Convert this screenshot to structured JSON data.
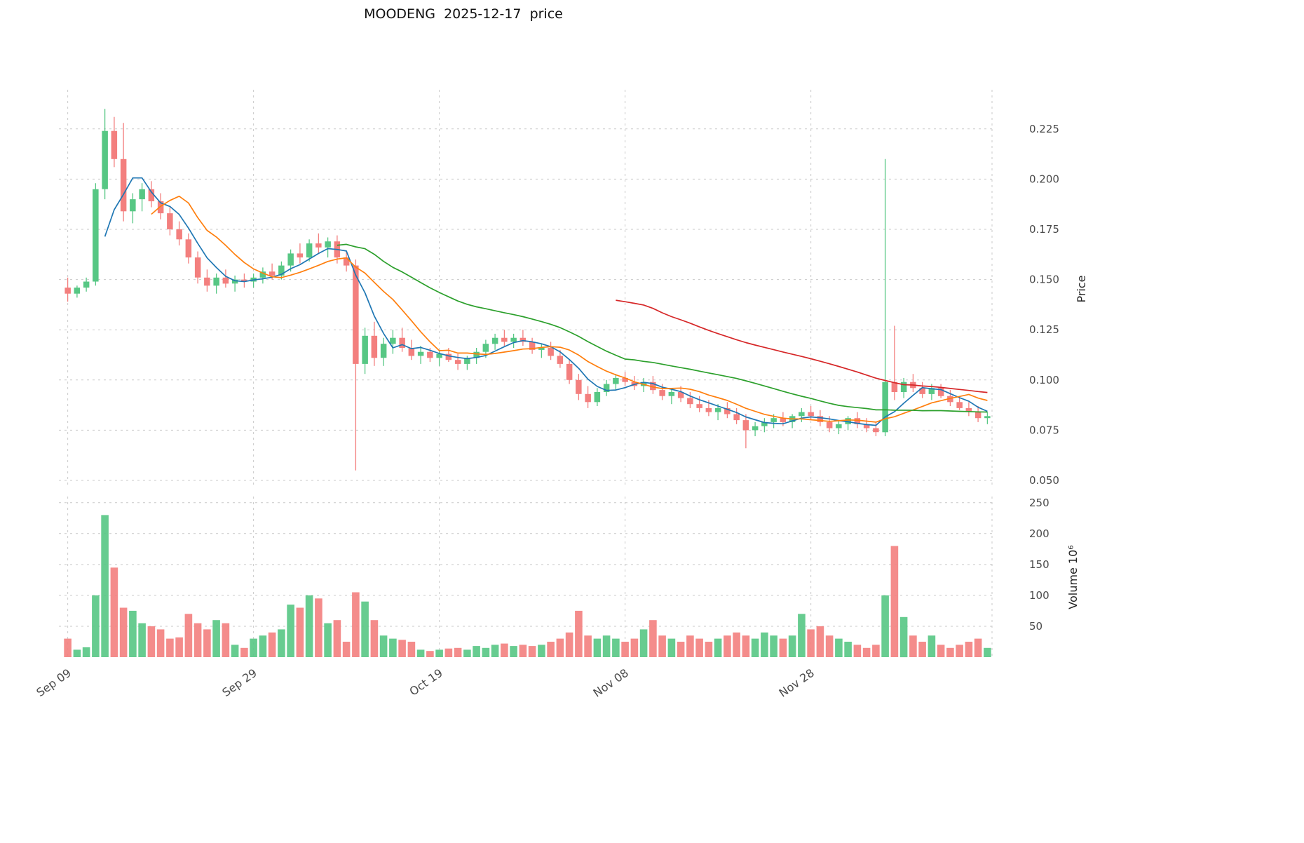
{
  "title": "MOODENG  2025-12-17  price",
  "axes": {
    "price_label": "Price",
    "volume_label": "Volume  10⁶",
    "price_tick_labels": [
      "0.050",
      "0.075",
      "0.100",
      "0.125",
      "0.150",
      "0.175",
      "0.200",
      "0.225"
    ],
    "volume_tick_labels": [
      "50",
      "100",
      "150",
      "200",
      "250"
    ]
  },
  "colors": {
    "up": "#57c784",
    "down": "#f37f7e",
    "ma_fast": "#1f77b4",
    "ma_mid": "#ff7f0e",
    "ma_slow": "#2ca02c",
    "ma_long": "#d62728",
    "grid": "#c9c9c9",
    "tick_text": "#4a4a4a",
    "background": "#ffffff"
  },
  "chart_data": {
    "type": "candlestick",
    "title": "MOODENG  2025-12-17  price",
    "price_axis_label": "Price",
    "volume_axis_label": "Volume  10⁶",
    "price_ticks": [
      0.05,
      0.075,
      0.1,
      0.125,
      0.15,
      0.175,
      0.2,
      0.225
    ],
    "volume_ticks": [
      50,
      100,
      150,
      200,
      250
    ],
    "price_ylim": [
      0.0465,
      0.2445
    ],
    "volume_ylim": [
      0,
      260
    ],
    "grid": "dashed",
    "x_ticks": [
      {
        "i": 0,
        "label": "Sep 09"
      },
      {
        "i": 20,
        "label": "Sep 29"
      },
      {
        "i": 40,
        "label": "Oct 19"
      },
      {
        "i": 60,
        "label": "Nov 08"
      },
      {
        "i": 80,
        "label": "Nov 28"
      }
    ],
    "moving_averages": [
      {
        "name": "ma5",
        "window": 5,
        "color": "#1f77b4"
      },
      {
        "name": "ma10",
        "window": 10,
        "color": "#ff7f0e"
      },
      {
        "name": "ma30",
        "window": 30,
        "color": "#2ca02c"
      },
      {
        "name": "ma60",
        "window": 60,
        "color": "#d62728"
      }
    ],
    "columns": [
      "date",
      "open",
      "high",
      "low",
      "close",
      "volume_millions"
    ],
    "candles": [
      [
        "2025-09-09",
        0.146,
        0.151,
        0.139,
        0.143,
        30
      ],
      [
        "2025-09-10",
        0.143,
        0.147,
        0.141,
        0.146,
        12
      ],
      [
        "2025-09-11",
        0.146,
        0.151,
        0.144,
        0.149,
        16
      ],
      [
        "2025-09-12",
        0.149,
        0.198,
        0.147,
        0.195,
        100
      ],
      [
        "2025-09-13",
        0.195,
        0.235,
        0.19,
        0.224,
        230
      ],
      [
        "2025-09-14",
        0.224,
        0.231,
        0.206,
        0.21,
        145
      ],
      [
        "2025-09-15",
        0.21,
        0.228,
        0.179,
        0.184,
        80
      ],
      [
        "2025-09-16",
        0.184,
        0.193,
        0.178,
        0.19,
        75
      ],
      [
        "2025-09-17",
        0.19,
        0.198,
        0.184,
        0.195,
        55
      ],
      [
        "2025-09-18",
        0.195,
        0.199,
        0.186,
        0.189,
        50
      ],
      [
        "2025-09-19",
        0.189,
        0.193,
        0.18,
        0.183,
        45
      ],
      [
        "2025-09-20",
        0.183,
        0.186,
        0.172,
        0.175,
        30
      ],
      [
        "2025-09-21",
        0.175,
        0.179,
        0.167,
        0.17,
        32
      ],
      [
        "2025-09-22",
        0.17,
        0.173,
        0.158,
        0.161,
        70
      ],
      [
        "2025-09-23",
        0.161,
        0.164,
        0.148,
        0.151,
        55
      ],
      [
        "2025-09-24",
        0.151,
        0.155,
        0.144,
        0.147,
        45
      ],
      [
        "2025-09-25",
        0.147,
        0.153,
        0.143,
        0.151,
        60
      ],
      [
        "2025-09-26",
        0.151,
        0.155,
        0.146,
        0.148,
        55
      ],
      [
        "2025-09-27",
        0.148,
        0.152,
        0.144,
        0.15,
        20
      ],
      [
        "2025-09-28",
        0.15,
        0.153,
        0.146,
        0.149,
        15
      ],
      [
        "2025-09-29",
        0.149,
        0.153,
        0.146,
        0.151,
        30
      ],
      [
        "2025-09-30",
        0.151,
        0.156,
        0.148,
        0.154,
        35
      ],
      [
        "2025-10-01",
        0.154,
        0.158,
        0.15,
        0.152,
        40
      ],
      [
        "2025-10-02",
        0.152,
        0.159,
        0.15,
        0.157,
        45
      ],
      [
        "2025-10-03",
        0.157,
        0.165,
        0.154,
        0.163,
        85
      ],
      [
        "2025-10-04",
        0.163,
        0.168,
        0.158,
        0.161,
        80
      ],
      [
        "2025-10-05",
        0.161,
        0.17,
        0.159,
        0.168,
        100
      ],
      [
        "2025-10-06",
        0.168,
        0.173,
        0.163,
        0.166,
        95
      ],
      [
        "2025-10-07",
        0.166,
        0.171,
        0.161,
        0.169,
        55
      ],
      [
        "2025-10-08",
        0.169,
        0.172,
        0.158,
        0.161,
        60
      ],
      [
        "2025-10-09",
        0.161,
        0.164,
        0.154,
        0.157,
        25
      ],
      [
        "2025-10-10",
        0.157,
        0.16,
        0.055,
        0.108,
        105
      ],
      [
        "2025-10-11",
        0.108,
        0.126,
        0.103,
        0.122,
        90
      ],
      [
        "2025-10-12",
        0.122,
        0.129,
        0.107,
        0.111,
        60
      ],
      [
        "2025-10-13",
        0.111,
        0.121,
        0.107,
        0.118,
        35
      ],
      [
        "2025-10-14",
        0.118,
        0.125,
        0.113,
        0.121,
        30
      ],
      [
        "2025-10-15",
        0.121,
        0.126,
        0.114,
        0.116,
        28
      ],
      [
        "2025-10-16",
        0.116,
        0.12,
        0.11,
        0.112,
        25
      ],
      [
        "2025-10-17",
        0.112,
        0.117,
        0.108,
        0.114,
        12
      ],
      [
        "2025-10-18",
        0.114,
        0.116,
        0.109,
        0.111,
        10
      ],
      [
        "2025-10-19",
        0.111,
        0.115,
        0.107,
        0.113,
        12
      ],
      [
        "2025-10-20",
        0.113,
        0.116,
        0.109,
        0.11,
        14
      ],
      [
        "2025-10-21",
        0.11,
        0.113,
        0.105,
        0.108,
        15
      ],
      [
        "2025-10-22",
        0.108,
        0.112,
        0.105,
        0.111,
        12
      ],
      [
        "2025-10-23",
        0.111,
        0.116,
        0.108,
        0.114,
        18
      ],
      [
        "2025-10-24",
        0.114,
        0.12,
        0.111,
        0.118,
        15
      ],
      [
        "2025-10-25",
        0.118,
        0.123,
        0.115,
        0.121,
        20
      ],
      [
        "2025-10-26",
        0.121,
        0.125,
        0.117,
        0.119,
        22
      ],
      [
        "2025-10-27",
        0.119,
        0.123,
        0.116,
        0.121,
        18
      ],
      [
        "2025-10-28",
        0.121,
        0.125,
        0.117,
        0.119,
        20
      ],
      [
        "2025-10-29",
        0.119,
        0.121,
        0.113,
        0.115,
        18
      ],
      [
        "2025-10-30",
        0.115,
        0.118,
        0.111,
        0.116,
        20
      ],
      [
        "2025-10-31",
        0.116,
        0.119,
        0.11,
        0.112,
        25
      ],
      [
        "2025-11-01",
        0.112,
        0.115,
        0.106,
        0.108,
        30
      ],
      [
        "2025-11-02",
        0.108,
        0.11,
        0.098,
        0.1,
        40
      ],
      [
        "2025-11-03",
        0.1,
        0.103,
        0.09,
        0.093,
        75
      ],
      [
        "2025-11-04",
        0.093,
        0.097,
        0.086,
        0.089,
        35
      ],
      [
        "2025-11-05",
        0.089,
        0.096,
        0.087,
        0.094,
        30
      ],
      [
        "2025-11-06",
        0.094,
        0.1,
        0.092,
        0.098,
        35
      ],
      [
        "2025-11-07",
        0.098,
        0.103,
        0.095,
        0.101,
        30
      ],
      [
        "2025-11-08",
        0.101,
        0.104,
        0.097,
        0.099,
        25
      ],
      [
        "2025-11-09",
        0.099,
        0.102,
        0.095,
        0.097,
        30
      ],
      [
        "2025-11-10",
        0.097,
        0.101,
        0.094,
        0.099,
        45
      ],
      [
        "2025-11-11",
        0.099,
        0.102,
        0.093,
        0.095,
        60
      ],
      [
        "2025-11-12",
        0.095,
        0.098,
        0.09,
        0.092,
        35
      ],
      [
        "2025-11-13",
        0.092,
        0.096,
        0.088,
        0.094,
        30
      ],
      [
        "2025-11-14",
        0.094,
        0.097,
        0.089,
        0.091,
        25
      ],
      [
        "2025-11-15",
        0.091,
        0.094,
        0.086,
        0.088,
        35
      ],
      [
        "2025-11-16",
        0.088,
        0.092,
        0.084,
        0.086,
        30
      ],
      [
        "2025-11-17",
        0.086,
        0.09,
        0.082,
        0.084,
        25
      ],
      [
        "2025-11-18",
        0.084,
        0.088,
        0.08,
        0.086,
        30
      ],
      [
        "2025-11-19",
        0.086,
        0.089,
        0.081,
        0.083,
        35
      ],
      [
        "2025-11-20",
        0.083,
        0.086,
        0.078,
        0.08,
        40
      ],
      [
        "2025-11-21",
        0.08,
        0.083,
        0.066,
        0.075,
        35
      ],
      [
        "2025-11-22",
        0.075,
        0.079,
        0.072,
        0.077,
        30
      ],
      [
        "2025-11-23",
        0.077,
        0.081,
        0.074,
        0.079,
        40
      ],
      [
        "2025-11-24",
        0.079,
        0.083,
        0.076,
        0.081,
        35
      ],
      [
        "2025-11-25",
        0.081,
        0.084,
        0.077,
        0.079,
        30
      ],
      [
        "2025-11-26",
        0.079,
        0.083,
        0.076,
        0.082,
        35
      ],
      [
        "2025-11-27",
        0.082,
        0.086,
        0.079,
        0.084,
        70
      ],
      [
        "2025-11-28",
        0.084,
        0.087,
        0.08,
        0.082,
        45
      ],
      [
        "2025-11-29",
        0.082,
        0.085,
        0.077,
        0.079,
        50
      ],
      [
        "2025-11-30",
        0.079,
        0.082,
        0.074,
        0.076,
        35
      ],
      [
        "2025-12-01",
        0.076,
        0.08,
        0.073,
        0.078,
        30
      ],
      [
        "2025-12-02",
        0.078,
        0.082,
        0.075,
        0.081,
        25
      ],
      [
        "2025-12-03",
        0.081,
        0.084,
        0.076,
        0.078,
        20
      ],
      [
        "2025-12-04",
        0.078,
        0.081,
        0.074,
        0.076,
        15
      ],
      [
        "2025-12-05",
        0.076,
        0.079,
        0.072,
        0.074,
        20
      ],
      [
        "2025-12-06",
        0.074,
        0.21,
        0.072,
        0.099,
        100
      ],
      [
        "2025-12-07",
        0.099,
        0.127,
        0.09,
        0.094,
        180
      ],
      [
        "2025-12-08",
        0.094,
        0.101,
        0.091,
        0.099,
        65
      ],
      [
        "2025-12-09",
        0.099,
        0.103,
        0.094,
        0.096,
        35
      ],
      [
        "2025-12-10",
        0.096,
        0.099,
        0.091,
        0.093,
        25
      ],
      [
        "2025-12-11",
        0.093,
        0.098,
        0.09,
        0.096,
        35
      ],
      [
        "2025-12-12",
        0.096,
        0.098,
        0.091,
        0.092,
        20
      ],
      [
        "2025-12-13",
        0.092,
        0.095,
        0.087,
        0.089,
        15
      ],
      [
        "2025-12-14",
        0.089,
        0.092,
        0.085,
        0.086,
        20
      ],
      [
        "2025-12-15",
        0.086,
        0.089,
        0.082,
        0.084,
        25
      ],
      [
        "2025-12-16",
        0.084,
        0.087,
        0.079,
        0.081,
        30
      ],
      [
        "2025-12-17",
        0.081,
        0.084,
        0.078,
        0.082,
        15
      ]
    ]
  }
}
